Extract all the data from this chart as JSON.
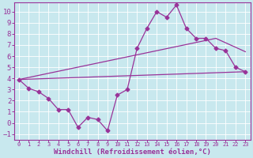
{
  "background_color": "#c8e8ee",
  "grid_color": "#aad8e0",
  "line_color": "#993399",
  "xlabel": "Windchill (Refroidissement éolien,°C)",
  "xlim": [
    -0.5,
    23.5
  ],
  "ylim": [
    -1.5,
    10.8
  ],
  "xticks": [
    0,
    1,
    2,
    3,
    4,
    5,
    6,
    7,
    8,
    9,
    10,
    11,
    12,
    13,
    14,
    15,
    16,
    17,
    18,
    19,
    20,
    21,
    22,
    23
  ],
  "yticks": [
    -1,
    0,
    1,
    2,
    3,
    4,
    5,
    6,
    7,
    8,
    9,
    10
  ],
  "line1_x": [
    0,
    1,
    2,
    3,
    4,
    5,
    6,
    7,
    8,
    9,
    10,
    11,
    12,
    13,
    14,
    15,
    16,
    17,
    18,
    19,
    20,
    21,
    22,
    23
  ],
  "line1_y": [
    3.9,
    3.1,
    2.8,
    2.2,
    1.2,
    1.2,
    -0.4,
    0.5,
    0.3,
    -0.7,
    2.5,
    3.0,
    6.7,
    8.5,
    10.0,
    9.5,
    10.6,
    8.5,
    7.6,
    7.6,
    6.7,
    6.5,
    5.0,
    4.6
  ],
  "line2_x": [
    0,
    23
  ],
  "line2_y": [
    3.9,
    4.6
  ],
  "line3_x": [
    0,
    20,
    23
  ],
  "line3_y": [
    3.9,
    7.6,
    6.4
  ]
}
